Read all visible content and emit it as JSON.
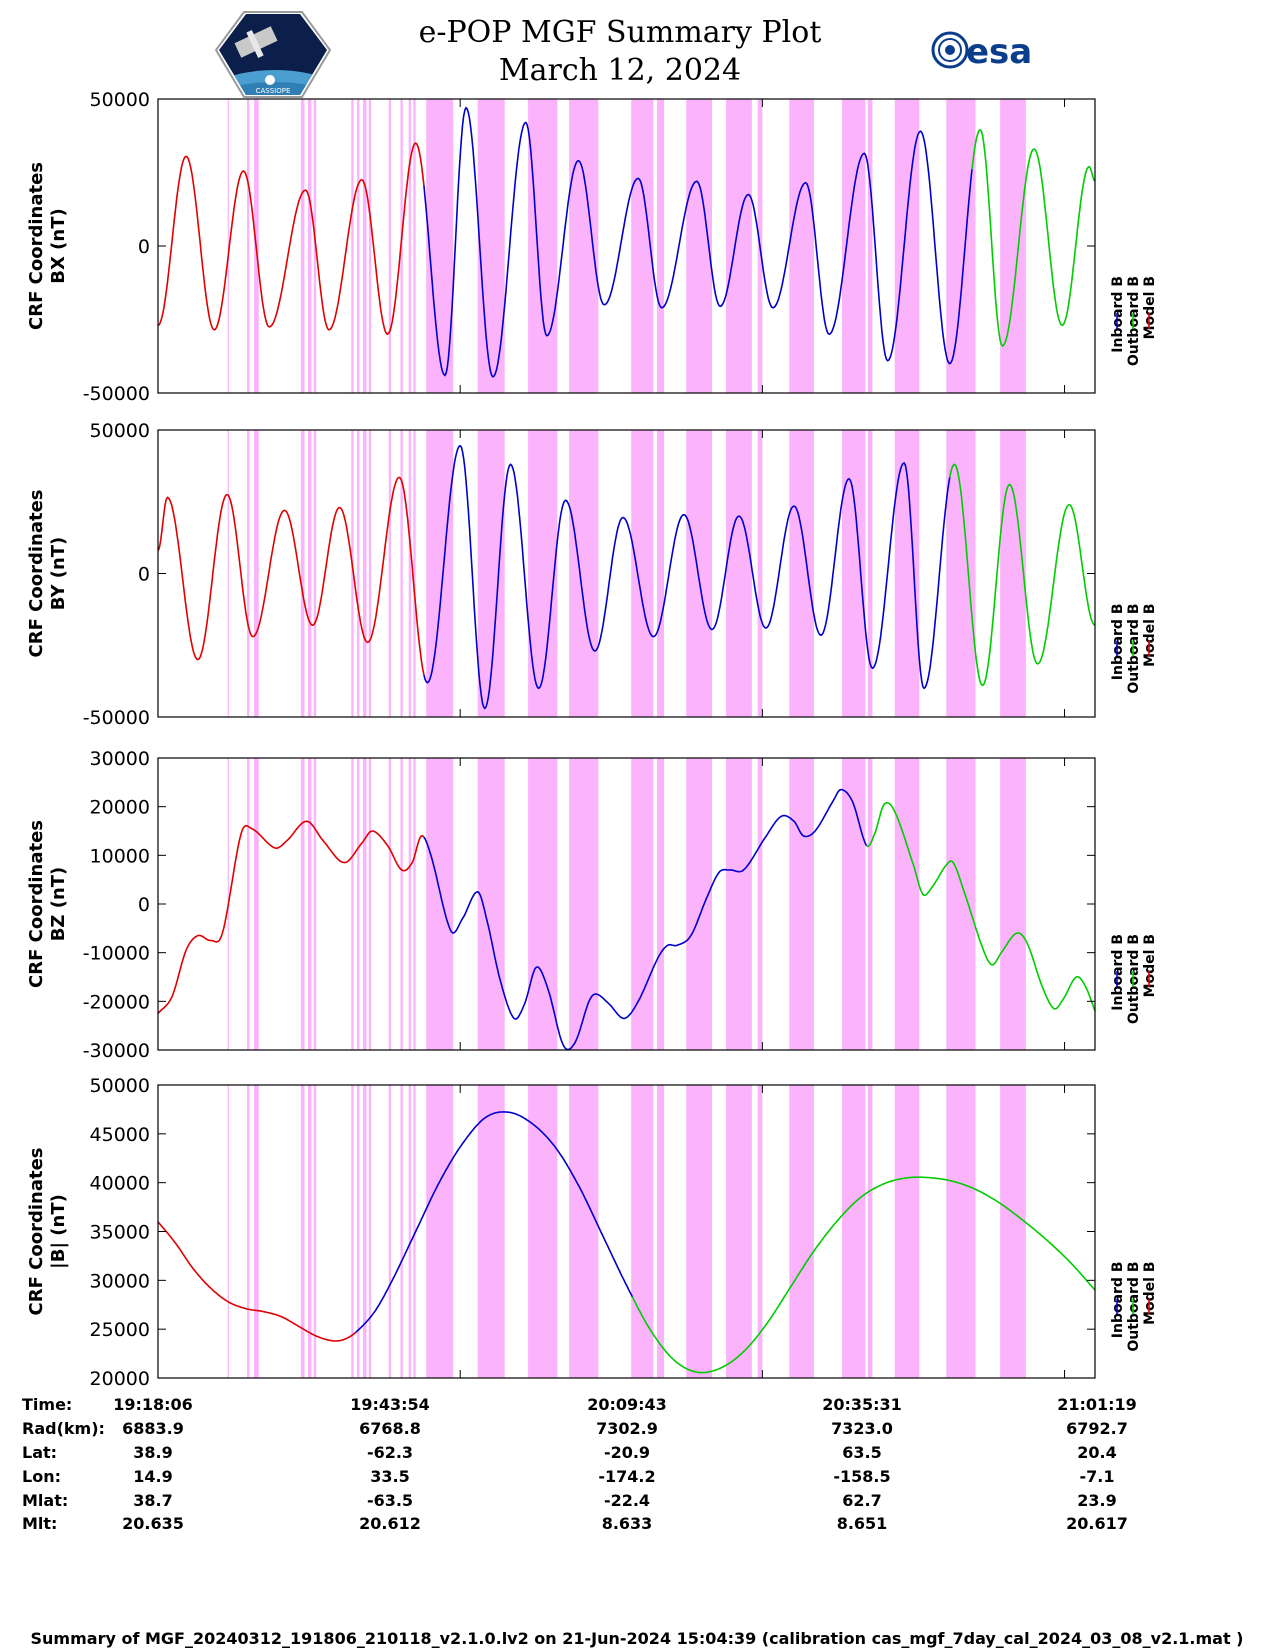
{
  "header": {
    "title": "e-POP MGF Summary Plot",
    "date": "March 12, 2024",
    "logo_left": "CASSIOPE",
    "logo_right": "esa"
  },
  "colors": {
    "inboard": "#0000cc",
    "outboard": "#00cc00",
    "model": "#e00000",
    "shade": "#fbb4fb"
  },
  "legend": [
    "Inboard B",
    "Outboard B",
    "Model B"
  ],
  "shaded_bands_minutes": [
    [
      5.95,
      6.05
    ],
    [
      7.6,
      7.8
    ],
    [
      8.2,
      8.6
    ],
    [
      12.2,
      12.5
    ],
    [
      12.8,
      13.1
    ],
    [
      13.3,
      13.5
    ],
    [
      16.5,
      16.7
    ],
    [
      17.0,
      17.2
    ],
    [
      17.5,
      17.8
    ],
    [
      18.0,
      18.2
    ],
    [
      19.7,
      19.9
    ],
    [
      20.7,
      20.9
    ],
    [
      21.4,
      21.6
    ],
    [
      21.8,
      22.0
    ],
    [
      22.9,
      25.2
    ],
    [
      27.3,
      29.6
    ],
    [
      31.6,
      34.1
    ],
    [
      35.1,
      37.6
    ],
    [
      40.4,
      42.3
    ],
    [
      42.6,
      43.2
    ],
    [
      45.1,
      47.3
    ],
    [
      48.5,
      50.7
    ],
    [
      51.2,
      51.6
    ],
    [
      53.9,
      56.0
    ],
    [
      58.4,
      60.4
    ],
    [
      60.6,
      61.0
    ],
    [
      62.9,
      65.0
    ],
    [
      67.3,
      69.8
    ],
    [
      71.9,
      74.1
    ]
  ],
  "chart_data": [
    {
      "type": "line",
      "ylabel": "CRF Coordinates BX (nT)",
      "ylim": [
        -50000,
        50000
      ],
      "yticks": [
        "50000",
        "0",
        "-50000"
      ],
      "x_range_minutes": [
        0,
        80
      ],
      "segments": [
        {
          "series": "Model B",
          "color_key": "model",
          "x_range": [
            0,
            22.7
          ]
        },
        {
          "series": "Inboard B",
          "color_key": "inboard",
          "x_range": [
            22.7,
            69.5
          ]
        },
        {
          "series": "Outboard B",
          "color_key": "outboard",
          "x_range": [
            69.5,
            80
          ]
        }
      ],
      "extrema_minutes_nT": [
        [
          0,
          -27000
        ],
        [
          2.4,
          30500
        ],
        [
          4.8,
          -28500
        ],
        [
          7.3,
          25500
        ],
        [
          9.5,
          -27500
        ],
        [
          12.6,
          19000
        ],
        [
          14.6,
          -28500
        ],
        [
          17.4,
          22500
        ],
        [
          19.6,
          -30000
        ],
        [
          22.0,
          35000
        ],
        [
          24.5,
          -44000
        ],
        [
          26.3,
          47000
        ],
        [
          28.6,
          -44500
        ],
        [
          31.4,
          42000
        ],
        [
          33.2,
          -30500
        ],
        [
          35.9,
          29000
        ],
        [
          38.1,
          -20000
        ],
        [
          41.0,
          23000
        ],
        [
          43.0,
          -21000
        ],
        [
          46.0,
          22000
        ],
        [
          48.0,
          -20500
        ],
        [
          50.4,
          17500
        ],
        [
          52.5,
          -21000
        ],
        [
          55.3,
          21500
        ],
        [
          57.3,
          -30000
        ],
        [
          60.3,
          31500
        ],
        [
          62.3,
          -39000
        ],
        [
          65.1,
          39000
        ],
        [
          67.6,
          -40000
        ],
        [
          70.2,
          39500
        ],
        [
          72.1,
          -34000
        ],
        [
          74.8,
          33000
        ],
        [
          77.2,
          -27000
        ],
        [
          79.5,
          27000
        ],
        [
          80,
          22000
        ]
      ]
    },
    {
      "type": "line",
      "ylabel": "CRF Coordinates BY (nT)",
      "ylim": [
        -50000,
        50000
      ],
      "yticks": [
        "50000",
        "0",
        "-50000"
      ],
      "x_range_minutes": [
        0,
        80
      ],
      "segments": [
        {
          "series": "Model B",
          "color_key": "model",
          "x_range": [
            0,
            22.7
          ]
        },
        {
          "series": "Inboard B",
          "color_key": "inboard",
          "x_range": [
            22.7,
            67.6
          ]
        },
        {
          "series": "Outboard B",
          "color_key": "outboard",
          "x_range": [
            67.6,
            80
          ]
        }
      ],
      "extrema_minutes_nT": [
        [
          0,
          8000
        ],
        [
          0.8,
          26500
        ],
        [
          3.4,
          -30000
        ],
        [
          5.9,
          27500
        ],
        [
          8.1,
          -22000
        ],
        [
          10.8,
          22000
        ],
        [
          13.2,
          -18000
        ],
        [
          15.5,
          23000
        ],
        [
          17.9,
          -24000
        ],
        [
          20.6,
          33500
        ],
        [
          23.0,
          -38000
        ],
        [
          25.8,
          44500
        ],
        [
          27.9,
          -47000
        ],
        [
          30.1,
          38000
        ],
        [
          32.5,
          -40000
        ],
        [
          34.8,
          25500
        ],
        [
          37.3,
          -27000
        ],
        [
          39.7,
          19500
        ],
        [
          42.3,
          -22000
        ],
        [
          44.9,
          20500
        ],
        [
          47.3,
          -19500
        ],
        [
          49.6,
          20000
        ],
        [
          51.9,
          -19000
        ],
        [
          54.3,
          23500
        ],
        [
          56.6,
          -21500
        ],
        [
          59.0,
          33000
        ],
        [
          61.0,
          -33000
        ],
        [
          63.7,
          38500
        ],
        [
          65.4,
          -40000
        ],
        [
          68.0,
          38000
        ],
        [
          70.4,
          -39000
        ],
        [
          72.7,
          31000
        ],
        [
          75.1,
          -31500
        ],
        [
          77.8,
          24000
        ],
        [
          80,
          -18000
        ]
      ]
    },
    {
      "type": "line",
      "ylabel": "CRF Coordinates BZ (nT)",
      "ylim": [
        -30000,
        30000
      ],
      "yticks": [
        "30000",
        "20000",
        "10000",
        "0",
        "-10000",
        "-20000",
        "-30000"
      ],
      "x_range_minutes": [
        0,
        80
      ],
      "segments": [
        {
          "series": "Model B",
          "color_key": "model",
          "x_range": [
            0,
            22.7
          ]
        },
        {
          "series": "Inboard B",
          "color_key": "inboard",
          "x_range": [
            22.7,
            60.5
          ]
        },
        {
          "series": "Outboard B",
          "color_key": "outboard",
          "x_range": [
            60.5,
            80
          ]
        }
      ],
      "points_minutes_nT": [
        [
          0,
          -22500
        ],
        [
          1.2,
          -19000
        ],
        [
          2.4,
          -9500
        ],
        [
          3.4,
          -6500
        ],
        [
          4.5,
          -7500
        ],
        [
          5.5,
          -6000
        ],
        [
          7.1,
          14500
        ],
        [
          8.0,
          15500
        ],
        [
          10.0,
          11500
        ],
        [
          11.0,
          13000
        ],
        [
          12.7,
          17000
        ],
        [
          14.1,
          13000
        ],
        [
          15.9,
          8500
        ],
        [
          17.4,
          12500
        ],
        [
          18.3,
          15000
        ],
        [
          19.6,
          12000
        ],
        [
          20.8,
          7000
        ],
        [
          21.7,
          8500
        ],
        [
          22.5,
          14000
        ],
        [
          23.3,
          10000
        ],
        [
          25.0,
          -5500
        ],
        [
          26.0,
          -3000
        ],
        [
          27.3,
          2500
        ],
        [
          28.1,
          -3500
        ],
        [
          29.2,
          -15500
        ],
        [
          30.4,
          -23500
        ],
        [
          31.3,
          -20500
        ],
        [
          32.3,
          -13000
        ],
        [
          33.3,
          -17500
        ],
        [
          34.6,
          -29000
        ],
        [
          35.6,
          -28500
        ],
        [
          36.8,
          -20000
        ],
        [
          37.4,
          -18500
        ],
        [
          38.5,
          -20500
        ],
        [
          39.8,
          -23500
        ],
        [
          41.0,
          -20000
        ],
        [
          42.7,
          -11000
        ],
        [
          43.5,
          -8500
        ],
        [
          44.3,
          -8500
        ],
        [
          45.5,
          -6500
        ],
        [
          46.8,
          1000
        ],
        [
          47.9,
          6500
        ],
        [
          48.8,
          7000
        ],
        [
          50.0,
          7000
        ],
        [
          51.8,
          13500
        ],
        [
          53.2,
          18000
        ],
        [
          54.3,
          17000
        ],
        [
          55.1,
          14000
        ],
        [
          56.1,
          15000
        ],
        [
          57.6,
          21000
        ],
        [
          58.3,
          23500
        ],
        [
          59.3,
          21000
        ],
        [
          60.5,
          12000
        ],
        [
          61.2,
          14500
        ],
        [
          62.0,
          20500
        ],
        [
          62.9,
          19000
        ],
        [
          64.5,
          8000
        ],
        [
          65.3,
          2000
        ],
        [
          66.1,
          3500
        ],
        [
          67.3,
          8000
        ],
        [
          67.9,
          8500
        ],
        [
          68.9,
          2000
        ],
        [
          70.4,
          -9000
        ],
        [
          71.2,
          -12500
        ],
        [
          72.0,
          -10000
        ],
        [
          73.3,
          -6000
        ],
        [
          74.2,
          -8000
        ],
        [
          75.5,
          -17000
        ],
        [
          76.5,
          -21500
        ],
        [
          77.3,
          -19500
        ],
        [
          78.4,
          -15000
        ],
        [
          79.2,
          -17000
        ],
        [
          80,
          -22000
        ]
      ]
    },
    {
      "type": "line",
      "ylabel": "CRF Coordinates |B| (nT)",
      "ylim": [
        20000,
        50000
      ],
      "yticks": [
        "50000",
        "45000",
        "40000",
        "35000",
        "30000",
        "25000",
        "20000"
      ],
      "x_range_minutes": [
        0,
        80
      ],
      "segments": [
        {
          "series": "Model B",
          "color_key": "model",
          "x_range": [
            0,
            16.9
          ]
        },
        {
          "series": "Inboard B",
          "color_key": "inboard",
          "x_range": [
            16.9,
            40.5
          ]
        },
        {
          "series": "Outboard B",
          "color_key": "outboard",
          "x_range": [
            40.5,
            80
          ]
        }
      ],
      "points_minutes_nT": [
        [
          0,
          36000
        ],
        [
          1.5,
          33800
        ],
        [
          3.0,
          31200
        ],
        [
          4.5,
          29200
        ],
        [
          6.0,
          27800
        ],
        [
          7.5,
          27100
        ],
        [
          9.0,
          26800
        ],
        [
          10.5,
          26300
        ],
        [
          12.0,
          25300
        ],
        [
          13.5,
          24300
        ],
        [
          15.0,
          23800
        ],
        [
          16.0,
          24000
        ],
        [
          17.0,
          24800
        ],
        [
          18.5,
          26800
        ],
        [
          20.0,
          30000
        ],
        [
          22.0,
          35000
        ],
        [
          24.0,
          40000
        ],
        [
          26.0,
          44000
        ],
        [
          28.0,
          46700
        ],
        [
          30.0,
          47200
        ],
        [
          32.0,
          46000
        ],
        [
          34.0,
          43500
        ],
        [
          36.0,
          39500
        ],
        [
          38.0,
          34500
        ],
        [
          40.0,
          29500
        ],
        [
          42.0,
          25000
        ],
        [
          44.0,
          21900
        ],
        [
          46.0,
          20600
        ],
        [
          48.0,
          21000
        ],
        [
          50.0,
          22700
        ],
        [
          52.0,
          25600
        ],
        [
          54.0,
          29300
        ],
        [
          56.0,
          33000
        ],
        [
          58.0,
          36100
        ],
        [
          60.0,
          38500
        ],
        [
          62.0,
          39900
        ],
        [
          64.0,
          40500
        ],
        [
          66.0,
          40500
        ],
        [
          68.0,
          40100
        ],
        [
          70.0,
          39200
        ],
        [
          72.0,
          37800
        ],
        [
          74.0,
          36000
        ],
        [
          76.0,
          34000
        ],
        [
          78.0,
          31700
        ],
        [
          80,
          29000
        ]
      ]
    }
  ],
  "time_table": {
    "row_labels": [
      "Time:",
      "Rad(km):",
      "Lat:",
      "Lon:",
      "Mlat:",
      "Mlt:"
    ],
    "columns": [
      [
        "19:18:06",
        "6883.9",
        "38.9",
        "14.9",
        "38.7",
        "20.635"
      ],
      [
        "19:43:54",
        "6768.8",
        "-62.3",
        "33.5",
        "-63.5",
        "20.612"
      ],
      [
        "20:09:43",
        "7302.9",
        "-20.9",
        "-174.2",
        "-22.4",
        "8.633"
      ],
      [
        "20:35:31",
        "7323.0",
        "63.5",
        "-158.5",
        "62.7",
        "8.651"
      ],
      [
        "21:01:19",
        "6792.7",
        "20.4",
        "-7.1",
        "23.9",
        "20.617"
      ]
    ]
  },
  "footer": "Summary of MGF_20240312_191806_210118_v2.1.0.lv2 on 21-Jun-2024 15:04:39 (calibration cas_mgf_7day_cal_2024_03_08_v2.1.mat )"
}
